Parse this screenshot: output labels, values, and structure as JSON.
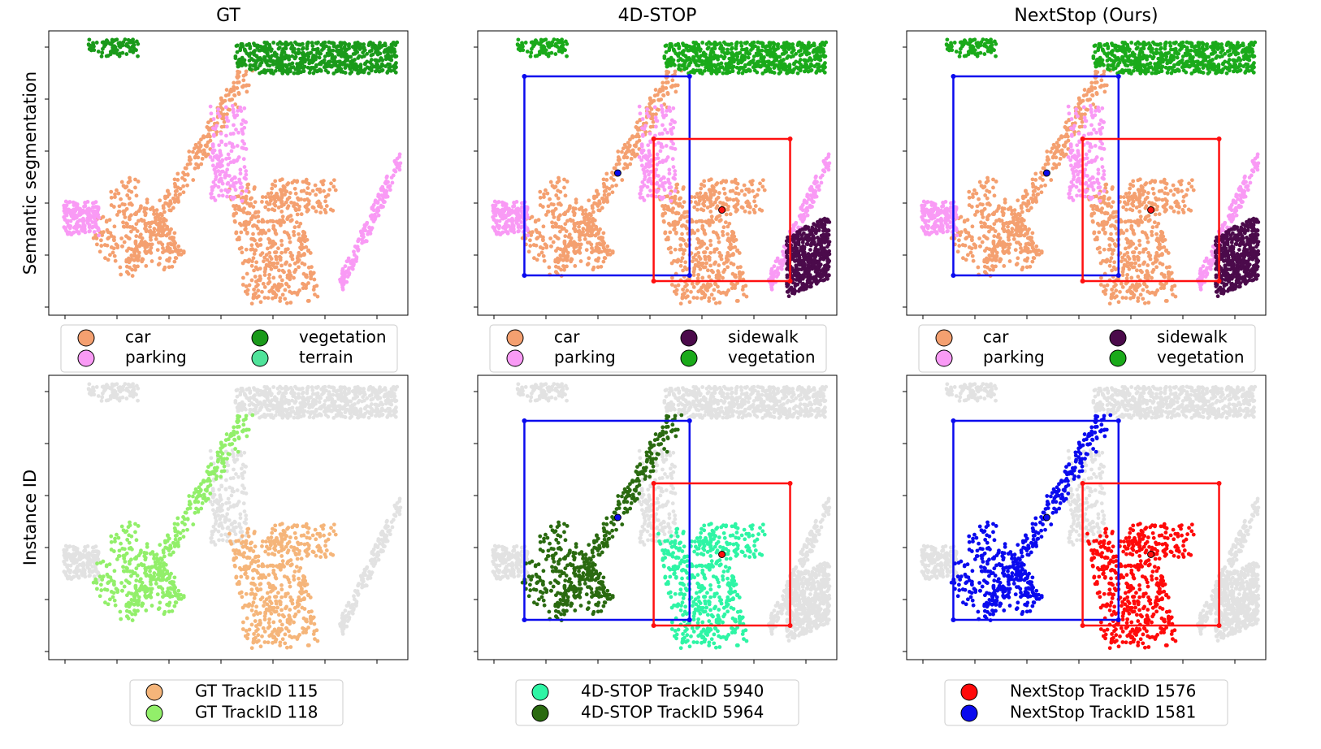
{
  "rows": [
    "Semantic segmentation",
    "Instance ID"
  ],
  "columns": [
    {
      "title": "GT",
      "semantic_legend": [
        {
          "label": "car",
          "color": "#f4a070"
        },
        {
          "label": "parking",
          "color": "#f99af5"
        },
        {
          "label": "vegetation",
          "color": "#1a9a1a"
        },
        {
          "label": "terrain",
          "color": "#4fe39a"
        }
      ],
      "instance_legend": [
        {
          "label": "GT  TrackID 115",
          "color": "#f5b57a"
        },
        {
          "label": "GT  TrackID 118",
          "color": "#92ef6a"
        }
      ]
    },
    {
      "title": "4D-STOP",
      "semantic_legend": [
        {
          "label": "car",
          "color": "#f4a070"
        },
        {
          "label": "parking",
          "color": "#f99af5"
        },
        {
          "label": "sidewalk",
          "color": "#4b0a4b"
        },
        {
          "label": "vegetation",
          "color": "#1aaa1a"
        }
      ],
      "instance_legend": [
        {
          "label": "4D-STOP  TrackID 5940",
          "color": "#2ef5a5"
        },
        {
          "label": "4D-STOP  TrackID 5964",
          "color": "#2a6a10"
        }
      ]
    },
    {
      "title": "NextStop (Ours)",
      "semantic_legend": [
        {
          "label": "car",
          "color": "#f4a070"
        },
        {
          "label": "parking",
          "color": "#f99af5"
        },
        {
          "label": "sidewalk",
          "color": "#4b0a4b"
        },
        {
          "label": "vegetation",
          "color": "#1aaa1a"
        }
      ],
      "instance_legend": [
        {
          "label": "NextStop  TrackID 1576",
          "color": "#ff0a0a"
        },
        {
          "label": "NextStop  TrackID 1581",
          "color": "#0a0aee"
        }
      ]
    }
  ]
}
